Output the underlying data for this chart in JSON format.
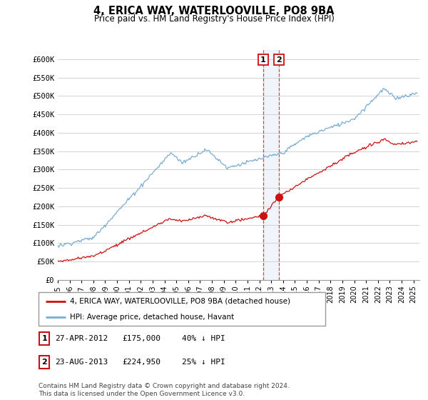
{
  "title": "4, ERICA WAY, WATERLOOVILLE, PO8 9BA",
  "subtitle": "Price paid vs. HM Land Registry's House Price Index (HPI)",
  "ylabel_ticks": [
    "£0",
    "£50K",
    "£100K",
    "£150K",
    "£200K",
    "£250K",
    "£300K",
    "£350K",
    "£400K",
    "£450K",
    "£500K",
    "£550K",
    "£600K"
  ],
  "ytick_values": [
    0,
    50000,
    100000,
    150000,
    200000,
    250000,
    300000,
    350000,
    400000,
    450000,
    500000,
    550000,
    600000
  ],
  "ylim": [
    0,
    625000
  ],
  "hpi_color": "#7aadd4",
  "price_color": "#cc1111",
  "sale1_date": "27-APR-2012",
  "sale1_price": 175000,
  "sale1_pct": "40% ↓ HPI",
  "sale2_date": "23-AUG-2013",
  "sale2_price": 224950,
  "sale2_pct": "25% ↓ HPI",
  "legend_label1": "4, ERICA WAY, WATERLOOVILLE, PO8 9BA (detached house)",
  "legend_label2": "HPI: Average price, detached house, Havant",
  "footer": "Contains HM Land Registry data © Crown copyright and database right 2024.\nThis data is licensed under the Open Government Licence v3.0.",
  "sale1_year": 2012.32,
  "sale2_year": 2013.65,
  "xmin": 1995,
  "xmax": 2025.5
}
